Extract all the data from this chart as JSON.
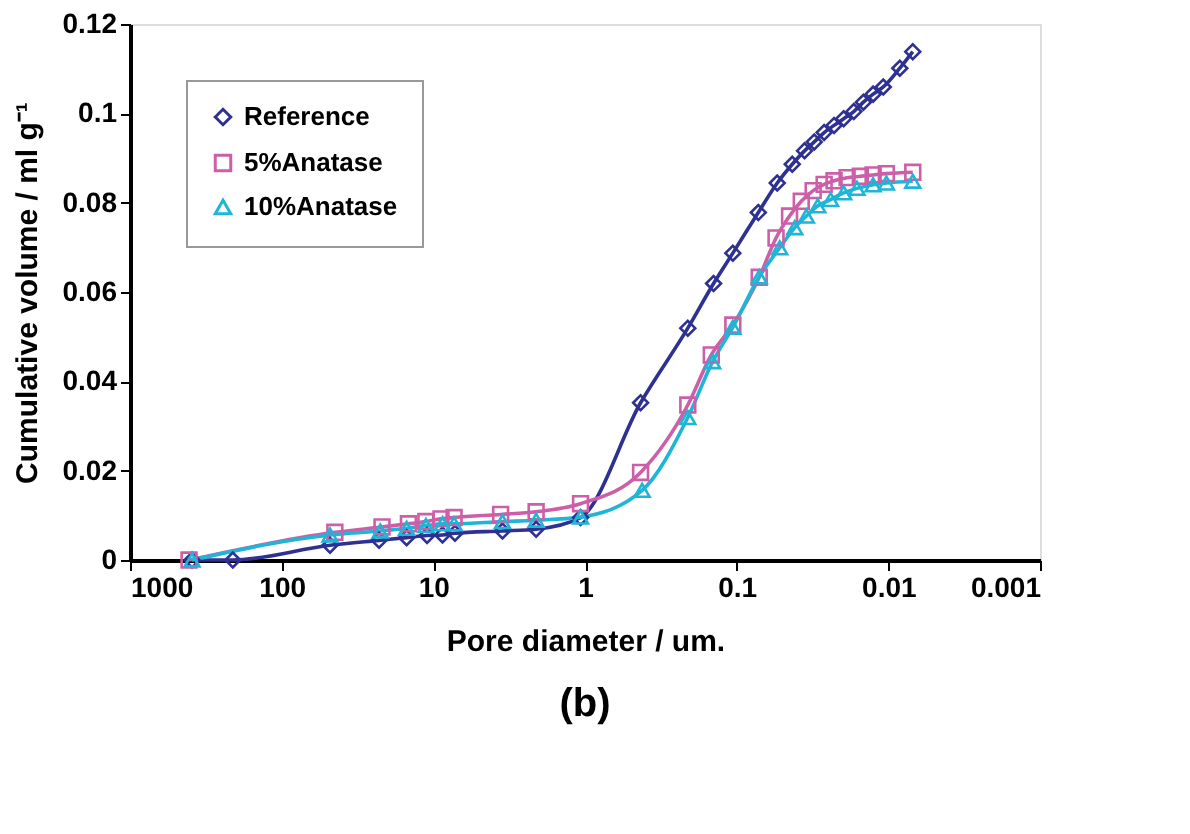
{
  "chart_data": {
    "type": "line",
    "title": "(b)",
    "xlabel": "Pore diameter / um.",
    "ylabel": "Cumulative volume / ml g⁻¹",
    "log": "x",
    "xlim": [
      1000,
      0.001
    ],
    "xticks": [
      1000,
      100,
      10,
      1,
      0.1,
      0.01,
      0.001
    ],
    "ylim": [
      0,
      0.12
    ],
    "yticks": [
      0,
      0.02,
      0.04,
      0.06,
      0.08,
      0.1,
      0.12
    ],
    "grid": false,
    "legend": "top left",
    "line_style": "solid",
    "series": [
      {
        "name": "Reference",
        "color": "#2e3192",
        "marker": "diamond",
        "x": [
          390,
          210,
          48,
          22.8,
          15,
          11,
          8.7,
          7.2,
          3.5,
          2.1,
          1.07,
          0.43,
          0.21,
          0.142,
          0.106,
          0.072,
          0.054,
          0.043,
          0.0357,
          0.0308,
          0.0265,
          0.0228,
          0.0197,
          0.0169,
          0.0146,
          0.0126,
          0.0108,
          0.0084,
          0.0069
        ],
        "values": [
          0,
          0,
          0.0033,
          0.0044,
          0.005,
          0.0055,
          0.0056,
          0.006,
          0.0065,
          0.0069,
          0.0095,
          0.0352,
          0.0519,
          0.0619,
          0.0687,
          0.0778,
          0.0844,
          0.0886,
          0.0916,
          0.0936,
          0.0957,
          0.0973,
          0.0988,
          0.1004,
          0.1025,
          0.1043,
          0.1059,
          0.1101,
          0.1138
        ]
      },
      {
        "name": "5%Anatase",
        "color": "#cc5fa8",
        "marker": "square",
        "x": [
          408,
          44.6,
          21.8,
          14.6,
          11.2,
          8.9,
          7.3,
          3.6,
          2.1,
          1.07,
          0.43,
          0.21,
          0.147,
          0.106,
          0.071,
          0.055,
          0.0448,
          0.0375,
          0.0313,
          0.0265,
          0.0228,
          0.0187,
          0.0153,
          0.0126,
          0.0103,
          0.0069
        ],
        "values": [
          0,
          0.0062,
          0.0074,
          0.0081,
          0.0086,
          0.0092,
          0.0095,
          0.0102,
          0.0108,
          0.0126,
          0.0196,
          0.0347,
          0.0459,
          0.0526,
          0.0633,
          0.0721,
          0.077,
          0.0803,
          0.0827,
          0.0841,
          0.0849,
          0.0856,
          0.0859,
          0.0862,
          0.0865,
          0.0868
        ]
      },
      {
        "name": "10%Anatase",
        "color": "#1fb5d6",
        "marker": "triangle",
        "x": [
          390,
          48,
          22.4,
          15,
          11.2,
          8.7,
          7.3,
          3.5,
          2.1,
          1.07,
          0.42,
          0.21,
          0.144,
          0.106,
          0.071,
          0.052,
          0.0414,
          0.0347,
          0.0292,
          0.024,
          0.0197,
          0.0161,
          0.0126,
          0.0103,
          0.0069
        ],
        "values": [
          0,
          0.0056,
          0.0065,
          0.0071,
          0.0077,
          0.0081,
          0.0081,
          0.0086,
          0.0089,
          0.0096,
          0.0156,
          0.0319,
          0.0444,
          0.0521,
          0.0634,
          0.0699,
          0.0744,
          0.077,
          0.0793,
          0.0807,
          0.0822,
          0.0832,
          0.084,
          0.0844,
          0.0848
        ]
      }
    ]
  }
}
